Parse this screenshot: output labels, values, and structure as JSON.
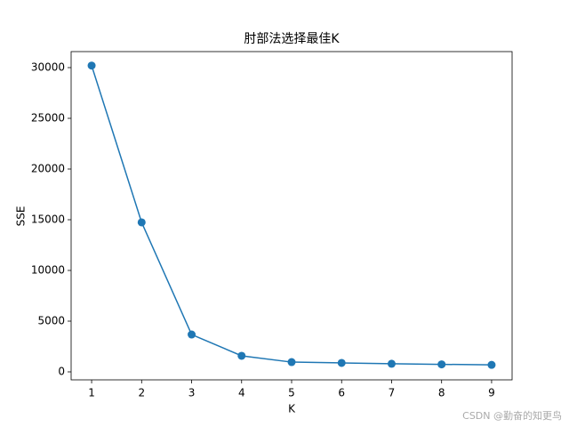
{
  "chart_data": {
    "type": "line",
    "title": "肘部法选择最佳K",
    "xlabel": "K",
    "ylabel": "SSE",
    "x": [
      1,
      2,
      3,
      4,
      5,
      6,
      7,
      8,
      9
    ],
    "series": [
      {
        "name": "SSE",
        "color": "#1f77b4",
        "values": [
          30200,
          14740,
          3680,
          1580,
          960,
          880,
          800,
          740,
          690
        ]
      }
    ],
    "xlim": [
      0.59,
      9.41
    ],
    "xticks": [
      1,
      2,
      3,
      4,
      5,
      6,
      7,
      8,
      9
    ],
    "ylim": [
      -789,
      31579
    ],
    "yticks": [
      0,
      5000,
      10000,
      15000,
      20000,
      25000,
      30000
    ],
    "marker": "o",
    "grid": false
  },
  "watermark": "CSDN @勤奋的知更鸟"
}
